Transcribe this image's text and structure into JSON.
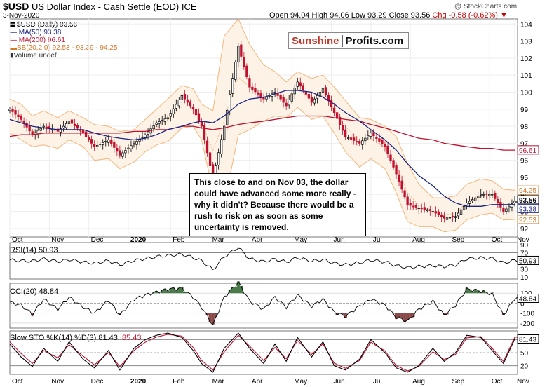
{
  "header": {
    "symbol": "$USD",
    "name": "US Dollar Index - Cash Settle (EOD)",
    "exchange": "ICE",
    "date": "3-Nov-2020",
    "ohlc": "Open 94.04  High 94.06  Low 93.29  Close 93.56",
    "change": "Chg -0.58 (-0.62%)",
    "copyright": "@ StockCharts.com"
  },
  "legend": {
    "line1": "$USD (Daily) 93.56",
    "line2": "MA(50) 93.38",
    "line3": "MA(200) 96.61",
    "line4": "BB(20,2.0) 92.53 - 93.39 - 94.25",
    "line5": "Volume undef"
  },
  "logo": {
    "part1": "Sunshine",
    "part2": "Profits.com"
  },
  "annotation": "This close to and on Nov 03, the dollar could have advanced some more really - why it didn't? Because there would be a rush to risk on as soon as some uncertainty is removed.",
  "panes": {
    "rsi_label": "RSI(14) 50.93",
    "cci_label": "CCI(20) 48.84",
    "sto_label_a": "Slow STO %K(14) %D(3) 81.43,",
    "sto_label_b": "85.43"
  },
  "colors": {
    "up": "#000000",
    "down": "#c0102e",
    "ma50": "#1a237e",
    "ma200": "#c0102e",
    "bb": "#f5b57a",
    "positive_fill": "#4a7a4a",
    "negative_fill": "#8b4a4a"
  },
  "chart_data": [
    {
      "type": "line",
      "title": "$USD (Daily)",
      "x_tick_labels": [
        "Oct",
        "Nov",
        "Dec",
        "2020",
        "Feb",
        "Mar",
        "Apr",
        "May",
        "Jun",
        "Jul",
        "Aug",
        "Sep",
        "Oct",
        "Nov"
      ],
      "y_tick_labels": [
        "92",
        "93",
        "94",
        "95",
        "96",
        "97",
        "98",
        "99",
        "100",
        "101",
        "102",
        "103",
        "104"
      ],
      "ylim": [
        91.5,
        104.3
      ],
      "price_labels": [
        {
          "value": 96.61,
          "text": "96.61"
        },
        {
          "value": 94.25,
          "text": "94.25"
        },
        {
          "value": 93.56,
          "text": "93.56"
        },
        {
          "value": 93.38,
          "text": "93.38"
        },
        {
          "value": 92.53,
          "text": "92.53"
        }
      ],
      "x": [
        0,
        4,
        8,
        12,
        17,
        21,
        26,
        30,
        35,
        39,
        44,
        48,
        52,
        56,
        61,
        65,
        68,
        72,
        76,
        81,
        85,
        90,
        94,
        98,
        102,
        107,
        111,
        115,
        119,
        124,
        128,
        133,
        137,
        141,
        145,
        150,
        154,
        158,
        162,
        167,
        171,
        175,
        179
      ],
      "close": [
        99.0,
        98.4,
        97.5,
        98.0,
        97.7,
        98.3,
        97.6,
        96.8,
        97.2,
        96.3,
        97.0,
        97.5,
        98.2,
        98.5,
        99.8,
        99.0,
        98.0,
        94.9,
        98.0,
        102.7,
        100.3,
        99.6,
        100.0,
        99.2,
        100.6,
        99.4,
        100.2,
        98.8,
        97.4,
        97.0,
        97.6,
        96.8,
        95.2,
        93.4,
        93.2,
        93.0,
        92.6,
        92.7,
        93.5,
        94.0,
        94.0,
        93.0,
        93.6
      ],
      "ma50": [
        98.4,
        98.2,
        98.0,
        97.9,
        97.8,
        97.8,
        97.8,
        97.6,
        97.4,
        97.3,
        97.2,
        97.3,
        97.5,
        97.8,
        98.0,
        98.2,
        98.3,
        98.2,
        98.6,
        99.3,
        99.6,
        99.7,
        99.9,
        100.1,
        100.1,
        100.0,
        99.7,
        99.3,
        98.8,
        98.3,
        97.8,
        97.2,
        96.6,
        95.8,
        95.1,
        94.5,
        93.9,
        93.5,
        93.3,
        93.3,
        93.4,
        93.4,
        93.4
      ],
      "ma200": [
        97.4,
        97.5,
        97.5,
        97.6,
        97.6,
        97.6,
        97.6,
        97.6,
        97.6,
        97.6,
        97.7,
        97.7,
        97.8,
        97.8,
        98.0,
        98.0,
        97.9,
        97.8,
        97.9,
        98.1,
        98.2,
        98.3,
        98.4,
        98.5,
        98.6,
        98.6,
        98.6,
        98.5,
        98.4,
        98.3,
        98.1,
        97.9,
        97.7,
        97.5,
        97.3,
        97.2,
        97.0,
        96.9,
        96.8,
        96.7,
        96.7,
        96.6,
        96.6
      ],
      "bb_upper": [
        99.6,
        99.3,
        98.6,
        98.9,
        98.5,
        98.9,
        98.5,
        98.1,
        98.0,
        97.7,
        97.8,
        98.4,
        99.0,
        99.6,
        100.4,
        100.2,
        99.3,
        98.9,
        103.3,
        104.3,
        102.8,
        101.6,
        101.2,
        100.6,
        101.2,
        100.8,
        101.0,
        100.3,
        99.5,
        98.5,
        98.4,
        98.0,
        97.4,
        95.8,
        94.6,
        93.8,
        93.8,
        93.9,
        94.6,
        94.9,
        94.8,
        94.3,
        94.25
      ],
      "bb_lower": [
        97.6,
        97.2,
        96.8,
        96.9,
        96.7,
        97.2,
        96.8,
        96.0,
        96.1,
        95.5,
        95.9,
        96.5,
        96.9,
        97.1,
        97.9,
        98.0,
        97.2,
        94.2,
        93.4,
        97.5,
        97.8,
        98.3,
        98.6,
        98.5,
        99.1,
        98.4,
        98.6,
        97.6,
        96.5,
        95.6,
        96.1,
        95.5,
        94.1,
        92.4,
        92.1,
        92.1,
        91.8,
        91.9,
        92.5,
        92.8,
        92.9,
        92.5,
        92.53
      ]
    },
    {
      "type": "line",
      "title": "RSI(14)",
      "y_tick_labels": [
        "10",
        "30",
        "50",
        "70",
        "90"
      ],
      "ylim": [
        5,
        95
      ],
      "value_label": "50.93",
      "values": [
        52,
        50,
        49,
        55,
        48,
        53,
        47,
        44,
        50,
        40,
        51,
        55,
        60,
        63,
        66,
        58,
        50,
        28,
        60,
        83,
        55,
        48,
        54,
        47,
        58,
        49,
        53,
        44,
        40,
        45,
        52,
        47,
        38,
        33,
        36,
        38,
        36,
        40,
        55,
        57,
        56,
        45,
        50.93
      ]
    },
    {
      "type": "area",
      "title": "CCI(20)",
      "y_tick_labels": [
        "100",
        "0",
        "-100",
        "-200"
      ],
      "ylim": [
        -250,
        200
      ],
      "value_label": "48.84",
      "values": [
        10,
        -20,
        -110,
        40,
        -60,
        60,
        -40,
        -100,
        30,
        -120,
        40,
        80,
        110,
        140,
        150,
        60,
        -40,
        -220,
        60,
        210,
        20,
        -60,
        60,
        -40,
        80,
        -30,
        40,
        -90,
        -130,
        -30,
        40,
        -20,
        -140,
        -180,
        -60,
        20,
        -120,
        -20,
        140,
        120,
        90,
        -120,
        48.84
      ]
    },
    {
      "type": "line",
      "title": "Slow STO %K(14) %D(3)",
      "y_tick_labels": [
        "20",
        "50",
        "80"
      ],
      "ylim": [
        0,
        100
      ],
      "k_label": "81.43",
      "d_label": "85.43",
      "k": [
        70,
        40,
        18,
        60,
        30,
        75,
        35,
        15,
        55,
        10,
        60,
        80,
        90,
        95,
        85,
        55,
        25,
        5,
        60,
        95,
        60,
        25,
        70,
        30,
        85,
        40,
        75,
        20,
        10,
        35,
        80,
        50,
        15,
        5,
        20,
        60,
        30,
        50,
        90,
        85,
        55,
        25,
        81.43
      ],
      "d": [
        75,
        48,
        25,
        55,
        38,
        68,
        42,
        22,
        50,
        18,
        55,
        74,
        86,
        92,
        88,
        62,
        32,
        10,
        52,
        90,
        65,
        32,
        62,
        36,
        78,
        46,
        70,
        26,
        14,
        32,
        74,
        54,
        20,
        8,
        18,
        52,
        34,
        46,
        84,
        87,
        60,
        30,
        85.43
      ]
    }
  ]
}
